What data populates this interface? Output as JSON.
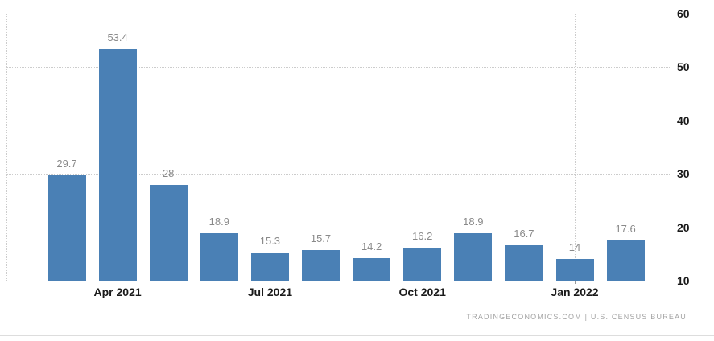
{
  "chart_data": {
    "type": "bar",
    "title": "",
    "values": [
      29.7,
      53.4,
      28,
      18.9,
      15.3,
      15.7,
      14.2,
      16.2,
      18.9,
      16.7,
      14,
      17.6
    ],
    "value_labels": [
      "29.7",
      "53.4",
      "28",
      "18.9",
      "15.3",
      "15.7",
      "14.2",
      "16.2",
      "18.9",
      "16.7",
      "14",
      "17.6"
    ],
    "x_ticks": [
      {
        "label": "Apr 2021",
        "bar_index": 1
      },
      {
        "label": "Jul 2021",
        "bar_index": 4
      },
      {
        "label": "Oct 2021",
        "bar_index": 7
      },
      {
        "label": "Jan 2022",
        "bar_index": 10
      }
    ],
    "y_ticks": [
      "60",
      "50",
      "40",
      "30",
      "20",
      "10"
    ],
    "y_tick_values": [
      60,
      50,
      40,
      30,
      20,
      10
    ],
    "ylim": [
      10,
      60
    ],
    "grid": "dotted",
    "legend_position": "none",
    "colors": {
      "bar": "#4a80b5",
      "gridline": "#cccccc",
      "value_label": "#8a8a8a",
      "axis_label": "#1a1a1a",
      "tick_mark": "#999999",
      "divider": "#dddddd",
      "attribution": "#a3a3a3"
    }
  },
  "attribution": {
    "text": "TRADINGECONOMICS.COM | U.S. CENSUS BUREAU"
  }
}
